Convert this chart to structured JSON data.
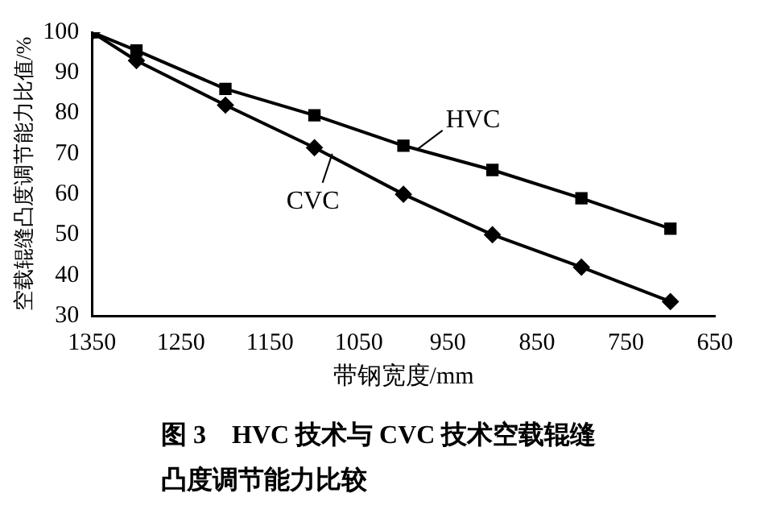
{
  "chart_data": {
    "type": "line",
    "title": "图 3　HVC 技术与 CVC 技术空载辊缝凸度调节能力比较",
    "xlabel": "带钢宽度/mm",
    "ylabel": "空载辊缝凸度调节能力比值/%",
    "x": [
      1350,
      1300,
      1200,
      1100,
      1000,
      900,
      800,
      700
    ],
    "series": [
      {
        "color": "#000000",
        "marker": "square",
        "values": [
          100,
          95.5,
          86,
          79.5,
          72,
          66,
          59,
          51.5
        ]
      },
      {
        "color": "#000000",
        "marker": "diamond",
        "values": [
          100,
          93,
          82,
          71.5,
          60,
          50,
          42,
          33.5
        ]
      }
    ],
    "annotations": [
      {
        "text": "HVC",
        "x": 985,
        "y": 71
      },
      {
        "text": "CVC",
        "x": 1080,
        "y": 70
      }
    ],
    "xlim": [
      1350,
      650
    ],
    "xticks": [
      1350,
      1250,
      1150,
      1050,
      950,
      850,
      750,
      650
    ],
    "ylim": [
      30,
      100
    ],
    "yticks": [
      30,
      40,
      50,
      60,
      70,
      80,
      90,
      100
    ],
    "grid": false,
    "legend": false,
    "line_style": "solid"
  }
}
